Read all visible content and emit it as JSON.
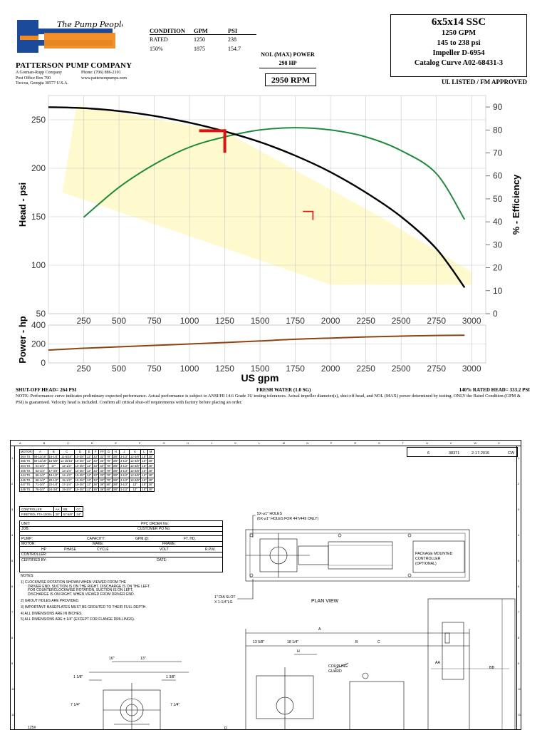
{
  "company": {
    "logo_text": "Patterson",
    "tagline": "The Pump People",
    "name": "PATTERSON PUMP COMPANY",
    "left_lines": [
      "A Gorman-Rupp Company",
      "Post Office Box 790",
      "Toccoa, Georgia 30577  U.S.A."
    ],
    "right_lines": [
      "Phone: (706) 886-2101",
      "www.pattersonpumps.com"
    ]
  },
  "conditions": {
    "headers": [
      "CONDITION",
      "GPM",
      "PSI"
    ],
    "rows": [
      [
        "RATED",
        "1250",
        "238"
      ],
      [
        "150%",
        "1875",
        "154.7"
      ]
    ]
  },
  "nol": {
    "label": "NOL (MAX) POWER",
    "value": "298 HP"
  },
  "rpm": "2950 RPM",
  "spec": {
    "title": "6x5x14 SSC",
    "lines": [
      "1250 GPM",
      "145 to 238 psi",
      "Impeller D-6954",
      "Catalog Curve A02-68431-3"
    ],
    "ul": "UL LISTED / FM APPROVED"
  },
  "chart_data": [
    {
      "type": "line",
      "title": "",
      "xlabel": "",
      "ylabel": "Head - psi",
      "y2label": "% - Efficiency",
      "xlim": [
        0,
        3100
      ],
      "ylim": [
        50,
        275
      ],
      "y2lim": [
        0,
        95
      ],
      "x_ticks": [
        250,
        500,
        750,
        1000,
        1250,
        1500,
        1750,
        2000,
        2250,
        2500,
        2750,
        3000
      ],
      "y_ticks": [
        50,
        100,
        150,
        200,
        250
      ],
      "y2_ticks": [
        0,
        10,
        20,
        30,
        40,
        50,
        60,
        70,
        80,
        90
      ],
      "grid": true,
      "series": [
        {
          "axis": "left",
          "color": "#000000",
          "x": [
            0,
            250,
            500,
            750,
            1000,
            1250,
            1500,
            1750,
            2000,
            2250,
            2500,
            2750,
            2950
          ],
          "y": [
            263,
            262,
            259,
            254,
            247,
            238,
            227,
            213,
            196,
            175,
            150,
            117,
            77
          ]
        },
        {
          "axis": "right",
          "color": "#1e8a3e",
          "x": [
            250,
            500,
            750,
            1000,
            1250,
            1500,
            1750,
            2000,
            2250,
            2500,
            2750,
            2950
          ],
          "y": [
            42,
            55,
            65,
            72.5,
            77,
            80,
            81,
            80,
            77,
            71,
            61,
            41
          ]
        }
      ],
      "envelope_color": "#fffacd",
      "envelope": {
        "x": [
          100,
          200,
          1250,
          2350,
          3000,
          3000,
          2000,
          100
        ],
        "y": [
          175,
          265,
          238,
          150,
          93,
          80,
          80,
          175
        ]
      },
      "rated_point": {
        "x": 1250,
        "y": 238,
        "color": "#e01010"
      },
      "overload_point": {
        "x": 1875,
        "y": 154.7,
        "color": "#e01010"
      }
    },
    {
      "type": "line",
      "title": "",
      "xlabel": "US gpm",
      "ylabel": "Power - hp",
      "xlim": [
        0,
        3100
      ],
      "ylim": [
        0,
        400
      ],
      "x_ticks": [
        250,
        500,
        750,
        1000,
        1250,
        1500,
        1750,
        2000,
        2250,
        2500,
        2750,
        3000
      ],
      "y_ticks": [
        0,
        200,
        400
      ],
      "grid": true,
      "series": [
        {
          "color": "#8b4513",
          "x": [
            0,
            250,
            500,
            750,
            1000,
            1250,
            1500,
            1750,
            2000,
            2250,
            2500,
            2750,
            2950
          ],
          "y": [
            135,
            155,
            170,
            185,
            200,
            215,
            232,
            250,
            262,
            275,
            283,
            290,
            292
          ]
        }
      ]
    }
  ],
  "chart_footer": {
    "shutoff": "SHUT-OFF HEAD= 264 PSI",
    "water": "FRESH WATER (1.0 SG)",
    "rated140": "140% RATED HEAD= 333.2 PSI",
    "note": "NOTE: Performance curve indicates preliminary expected performance. Actual performance is subject to ANSI/HI 14.6 Grade 1U testing tolerances. Actual impeller diameter(s), shut-off head, and NOL (MAX) power determined by testing. ONLY the Rated Condition (GPM & PSI) is guaranteed. Velocity head is included. Confirm all critical shut-off requirements with factory before placing an order."
  },
  "drawing": {
    "columns": [
      "A",
      "B",
      "C",
      "D",
      "E",
      "F",
      "G",
      "H",
      "J",
      "K",
      "L",
      "M",
      "N",
      "P",
      "R",
      "S",
      "T",
      "U",
      "V",
      "W",
      "X"
    ],
    "rows": [
      "1",
      "2",
      "3",
      "4",
      "5",
      "6",
      "7",
      "8",
      "9",
      "10",
      "11"
    ],
    "motor_table": {
      "headers": [
        "MOTOR",
        "A",
        "B",
        "C",
        "D",
        "E",
        "F",
        "FF",
        "G",
        "H",
        "J",
        "K",
        "L",
        "M"
      ],
      "rows": [
        [
          "364 TS",
          "58-13/16\"",
          "15-1/4\"",
          "11-5/16\"",
          "10-3/4\"",
          "12\"",
          "33\"",
          "33\"",
          "70\"",
          "3/8\"",
          "3-1/2\"",
          "12-3/8\"",
          "15\"",
          "30\""
        ],
        [
          "365 TS",
          "59-13/16\"",
          "15-5/8\"",
          "11-15/16\"",
          "10-3/4\"",
          "12\"",
          "33\"",
          "33\"",
          "70\"",
          "3/8\"",
          "3-1/2\"",
          "12-3/8\"",
          "15\"",
          "30\""
        ],
        [
          "404 TS",
          "61-3/4\"",
          "17\"",
          "12-1/2\"",
          "10-3/4\"",
          "12\"",
          "33\"",
          "33\"",
          "70\"",
          "3/8\"",
          "3-1/2\"",
          "12-3/8\"",
          "15\"",
          "30\""
        ],
        [
          "405 TS",
          "63-1/4\"",
          "17-3/4\"",
          "13-1/4\"",
          "10-3/4\"",
          "12\"",
          "33\"",
          "33\"",
          "70\"",
          "3/8\"",
          "3-1/2\"",
          "12-3/8\"",
          "15\"",
          "30\""
        ],
        [
          "444 TS",
          "66-1/4\"",
          "19-1/2\"",
          "14-1/2\"",
          "10-3/4\"",
          "12\"",
          "33\"",
          "33\"",
          "70\"",
          "3/8\"",
          "3-1/2\"",
          "12-3/8\"",
          "15\"",
          "30\""
        ],
        [
          "445 TS",
          "68-1/4\"",
          "20-1/2\"",
          "15-1/2\"",
          "10-3/4\"",
          "12\"",
          "33\"",
          "33\"",
          "70\"",
          "3/8\"",
          "3-1/2\"",
          "12-3/8\"",
          "15\"",
          "30\""
        ],
        [
          "447 TS",
          "71-3/4\"",
          "22-1/4\"",
          "17-1/4\"",
          "10-3/4\"",
          "12\"",
          "38\"",
          "38\"",
          "80\"",
          "3/8\"",
          "3-1/2\"",
          "13\"",
          "15\"",
          "30\""
        ],
        [
          "449 TS",
          "76-3/4\"",
          "24-3/4\"",
          "19-3/4\"",
          "10-3/4\"",
          "12\"",
          "38\"",
          "38\"",
          "80\"",
          "3/8\"",
          "3-1/2\"",
          "13\"",
          "15\"",
          "30\""
        ]
      ]
    },
    "controller_table": {
      "headers": [
        "CONTROLLER",
        "AA",
        "BB",
        "CC"
      ],
      "row": [
        "FIRETROL FTA-1000A",
        "26\"",
        "67-5/8\"",
        "34\""
      ]
    },
    "revision": {
      "rev": "6",
      "num": "38371",
      "date": "2-17-2016",
      "rot": "CW"
    },
    "form": {
      "unit": "UNIT:",
      "job": "JOB:",
      "ppc": "PPC ORDER No:",
      "po": "CUSTOMER PO No:",
      "pump": "PUMP:",
      "capacity": "CAPACITY:",
      "gpm": "GPM.@:",
      "fthd": "FT. HD.",
      "motor": "MOTOR:",
      "make": "MAKE:",
      "frame": "FRAME:",
      "hp": "HP",
      "phase": "PHASE",
      "cycle": "CYCLE",
      "volt": "VOLT",
      "rpm": "R.P.M.",
      "controller": "CONTROLLER:",
      "certified": "CERTIFIED BY:",
      "date": "DATE:"
    },
    "notes": {
      "title": "NOTES:",
      "items": [
        [
          "1) CLOCKWISE ROTATION SHOWN WHEN VIEWED FROM THE",
          "DRIVER END. SUCTION IS ON THE RIGHT. DISCHARGE IS ON THE LEFT.",
          "FOR COUNTERCLOCKWISE ROTATION, SUCTION IS ON LEFT,",
          "DISCHARGE IS ON RIGHT. WHEN VIEWED FROM DRIVER END."
        ],
        [
          "2) GROUT HOLES ARE PROVIDED."
        ],
        [
          "3) IMPORTANT: BASEPLATES MUST BE GROUTED TO THEIR FULL DEPTH."
        ],
        [
          "4) ALL DIMENSIONS ARE IN INCHES."
        ],
        [
          "5) ALL DIMENSIONS ARE ± 1/4\" (EXCEPT FOR FLANGE DRILLINGS)."
        ]
      ]
    },
    "labels": {
      "holes1": "5X-⌀1\" HOLES",
      "holes2": "(6X-⌀1\" HOLES FOR 447/449 ONLY)",
      "controller1": "PACKAGE MOUNTED",
      "controller2": "CONTROLLER",
      "controller3": "(OPTIONAL)",
      "slot1": "1\" DIA SLOT",
      "slot2": "X 1-1/4\"LG",
      "plan_view": "PLAN VIEW",
      "dim_a": "A",
      "dim_1358": "13 5/8\"",
      "dim_1814": "18 1/4\"",
      "dim_b": "B",
      "dim_c": "C",
      "dim_h": "H",
      "coupling1": "COUPLING",
      "coupling2": "GUARD",
      "dim_16": "16\"",
      "dim_13": "13\"",
      "dim_118": "1 1/8\"",
      "dim_138": "1 3/8\"",
      "dim_714a": "7 1/4\"",
      "dim_714b": "7 1/4\"",
      "flange": "125#",
      "dim_aa": "AA",
      "dim_bb": "BB",
      "dim_d": "D"
    }
  }
}
